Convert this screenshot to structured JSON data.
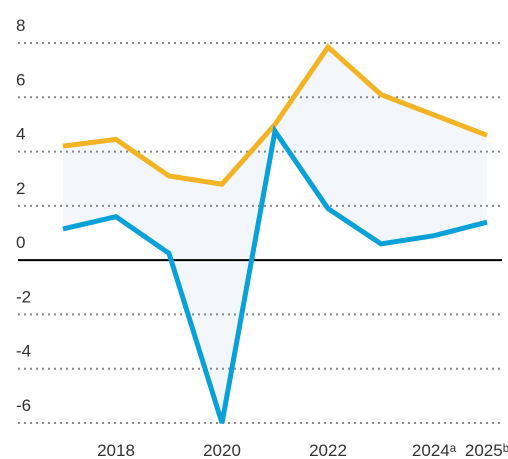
{
  "chart_data": {
    "type": "line",
    "categories": [
      null,
      "2018",
      null,
      "2020",
      null,
      "2022",
      null,
      "2024ᵃ",
      "2025ᵇ"
    ],
    "series": [
      {
        "color": "#f2b324",
        "values": [
          4.2,
          4.45,
          3.1,
          2.8,
          5.0,
          7.85,
          6.1,
          5.35,
          4.6
        ]
      },
      {
        "color": "#0aa0d8",
        "values": [
          1.15,
          1.6,
          0.25,
          -6.0,
          4.75,
          1.9,
          0.6,
          0.9,
          1.4
        ]
      }
    ],
    "band_color": "#f3f7fb",
    "ylim": [
      -6,
      8
    ],
    "yticks": [
      -6,
      -4,
      -2,
      0,
      2,
      4,
      6,
      8
    ],
    "grid": true
  }
}
